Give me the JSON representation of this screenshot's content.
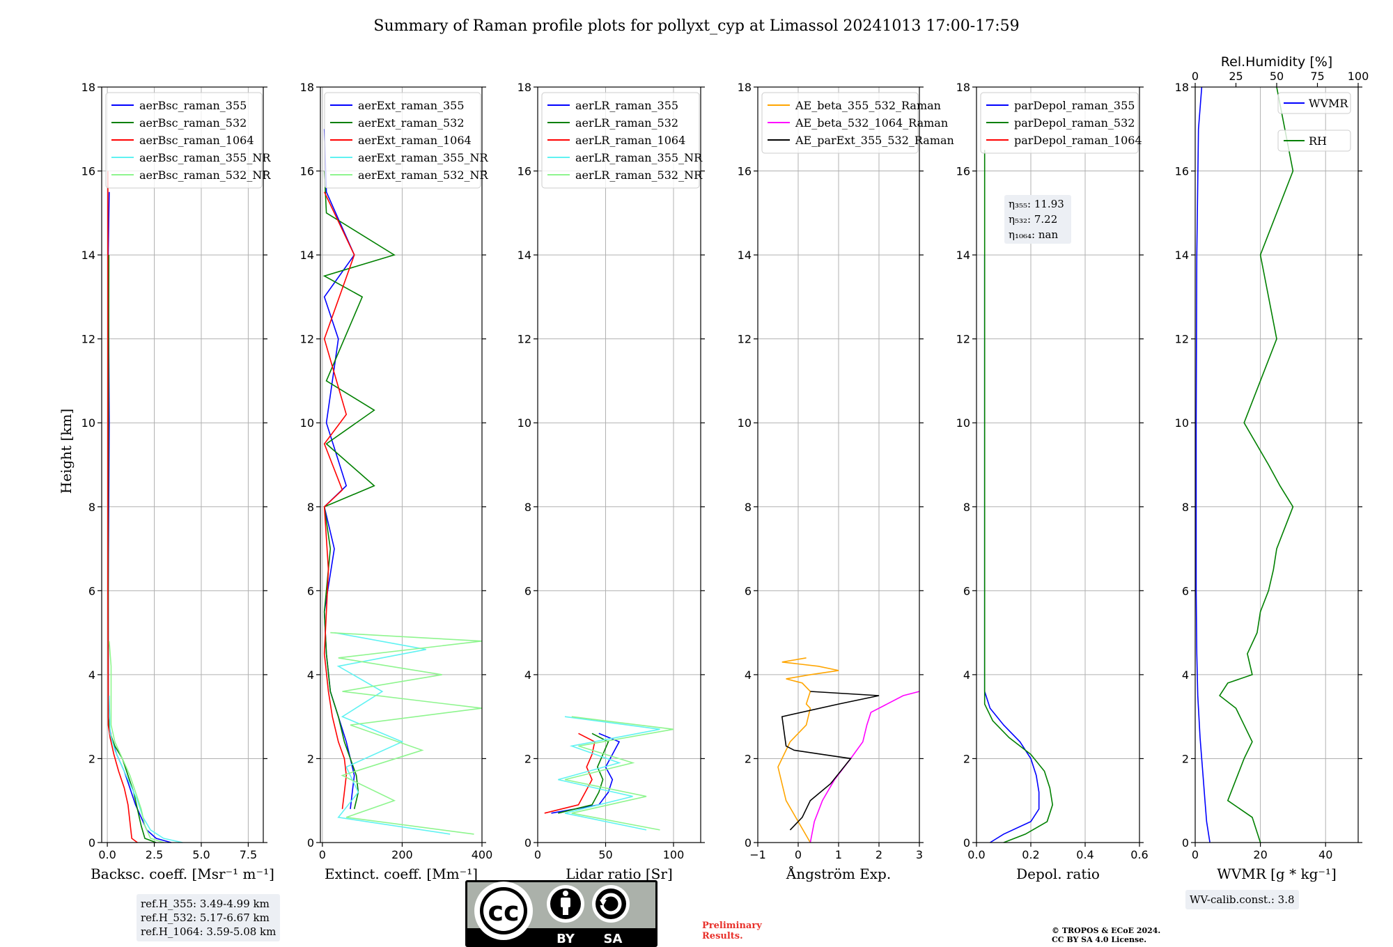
{
  "figure": {
    "title": "Summary of Raman profile plots for pollyxt_cyp at Limassol 20241013 17:00-17:59",
    "ylabel": "Height [km]"
  },
  "chart_data": [
    {
      "type": "line",
      "id": "bsc",
      "xlabel": "Backsc. coeff. [Msr⁻¹ m⁻¹]",
      "xlim": [
        -0.3,
        8.3
      ],
      "xticks": [
        0.0,
        2.5,
        5.0,
        7.5
      ],
      "xticklabels": [
        "0.0",
        "2.5",
        "5.0",
        "7.5"
      ],
      "ylim": [
        0,
        18
      ],
      "yticks": [
        0,
        2,
        4,
        6,
        8,
        10,
        12,
        14,
        16,
        18
      ],
      "legend": "top-left",
      "series": [
        {
          "name": "aerBsc_raman_355",
          "color": "#0000ff",
          "x": [
            3.4,
            2.6,
            2.1,
            1.8,
            1.5,
            1.2,
            0.9,
            0.5,
            0.2,
            0.05,
            0.05,
            0.1,
            0.05,
            0.1
          ],
          "y": [
            0,
            0.1,
            0.3,
            0.6,
            0.9,
            1.3,
            1.7,
            2.1,
            2.5,
            3.0,
            6.0,
            10.0,
            14.0,
            15.5
          ]
        },
        {
          "name": "aerBsc_raman_532",
          "color": "#008000",
          "x": [
            2.6,
            2.0,
            1.8,
            1.6,
            1.4,
            1.1,
            0.8,
            0.4,
            0.15,
            0.05,
            0.05,
            0.08
          ],
          "y": [
            0,
            0.1,
            0.4,
            0.8,
            1.2,
            1.6,
            2.0,
            2.3,
            2.6,
            3.0,
            8.0,
            14.0
          ]
        },
        {
          "name": "aerBsc_raman_1064",
          "color": "#ff0000",
          "x": [
            1.6,
            1.3,
            1.2,
            1.1,
            0.9,
            0.6,
            0.35,
            0.15,
            0.05,
            0.03,
            0.03
          ],
          "y": [
            0,
            0.1,
            0.5,
            0.9,
            1.3,
            1.7,
            2.1,
            2.5,
            2.8,
            6.0,
            16.0
          ]
        },
        {
          "name": "aerBsc_raman_355_NR",
          "color": "#5ff2f2",
          "x": [
            4.0,
            3.0,
            2.3,
            1.9,
            1.6,
            1.2,
            0.8,
            0.4,
            0.15,
            0.1
          ],
          "y": [
            0,
            0.1,
            0.3,
            0.6,
            1.0,
            1.4,
            1.8,
            2.2,
            2.6,
            3.5
          ]
        },
        {
          "name": "aerBsc_raman_532_NR",
          "color": "#8ef58e",
          "x": [
            3.0,
            2.3,
            2.0,
            1.8,
            1.5,
            1.2,
            0.8,
            0.4,
            0.2,
            0.2,
            0.1
          ],
          "y": [
            0,
            0.1,
            0.4,
            0.8,
            1.2,
            1.6,
            2.0,
            2.4,
            2.8,
            4.2,
            4.8
          ]
        }
      ]
    },
    {
      "type": "line",
      "id": "ext",
      "xlabel": "Extinct. coeff. [Mm⁻¹]",
      "xlim": [
        -5,
        400
      ],
      "xticks": [
        0,
        200,
        400
      ],
      "xticklabels": [
        "0",
        "200",
        "400"
      ],
      "ylim": [
        0,
        18
      ],
      "yticks": [
        0,
        2,
        4,
        6,
        8,
        10,
        12,
        14,
        16,
        18
      ],
      "legend": "top-left",
      "series": [
        {
          "name": "aerExt_raman_355",
          "color": "#0000ff",
          "x": [
            70,
            75,
            80,
            70,
            60,
            40,
            20,
            10,
            5,
            30,
            5,
            60,
            10,
            40,
            5,
            80,
            10,
            5
          ],
          "y": [
            0.8,
            1.2,
            1.6,
            2.0,
            2.4,
            3.0,
            3.6,
            4.5,
            5.5,
            7.0,
            8.0,
            8.5,
            10.0,
            12.0,
            13.0,
            14.0,
            15.5,
            17.0
          ]
        },
        {
          "name": "aerExt_raman_532",
          "color": "#008000",
          "x": [
            80,
            90,
            85,
            70,
            55,
            40,
            20,
            10,
            5,
            20,
            5,
            130,
            10,
            130,
            10,
            100,
            5,
            180,
            10,
            5
          ],
          "y": [
            0.8,
            1.2,
            1.6,
            2.0,
            2.4,
            3.0,
            3.6,
            4.5,
            5.5,
            7.0,
            8.0,
            8.5,
            9.5,
            10.3,
            11.0,
            13.0,
            13.5,
            14.0,
            15.0,
            16.0
          ]
        },
        {
          "name": "aerExt_raman_1064",
          "color": "#ff0000",
          "x": [
            50,
            55,
            60,
            55,
            40,
            25,
            15,
            5,
            15,
            5,
            50,
            5,
            60,
            5,
            80,
            5
          ],
          "y": [
            0.8,
            1.2,
            1.6,
            2.0,
            2.4,
            3.0,
            3.6,
            4.5,
            6.5,
            8.0,
            8.4,
            9.5,
            10.2,
            12.0,
            14.0,
            15.5
          ]
        },
        {
          "name": "aerExt_raman_355_NR",
          "color": "#5ff2f2",
          "x": [
            320,
            40,
            90,
            60,
            200,
            50,
            150,
            40,
            260,
            30
          ],
          "y": [
            0.2,
            0.6,
            1.2,
            1.8,
            2.4,
            3.0,
            3.6,
            4.2,
            4.6,
            5.0
          ]
        },
        {
          "name": "aerExt_raman_532_NR",
          "color": "#8ef58e",
          "x": [
            380,
            60,
            180,
            50,
            250,
            70,
            400,
            50,
            300,
            40,
            400,
            20
          ],
          "y": [
            0.2,
            0.6,
            1.0,
            1.6,
            2.2,
            2.8,
            3.2,
            3.6,
            4.0,
            4.4,
            4.8,
            5.0
          ]
        }
      ]
    },
    {
      "type": "line",
      "id": "lr",
      "xlabel": "Lidar ratio [Sr]",
      "xlim": [
        0,
        120
      ],
      "xticks": [
        0,
        50,
        100
      ],
      "xticklabels": [
        "0",
        "50",
        "100"
      ],
      "ylim": [
        0,
        18
      ],
      "yticks": [
        0,
        2,
        4,
        6,
        8,
        10,
        12,
        14,
        16,
        18
      ],
      "legend": "top-left",
      "series": [
        {
          "name": "aerLR_raman_355",
          "color": "#0000ff",
          "x": [
            10,
            45,
            52,
            55,
            50,
            55,
            60,
            45
          ],
          "y": [
            0.7,
            0.9,
            1.2,
            1.5,
            1.8,
            2.1,
            2.4,
            2.6
          ]
        },
        {
          "name": "aerLR_raman_532",
          "color": "#008000",
          "x": [
            15,
            40,
            45,
            48,
            44,
            48,
            52,
            40
          ],
          "y": [
            0.7,
            0.9,
            1.2,
            1.5,
            1.8,
            2.1,
            2.4,
            2.6
          ]
        },
        {
          "name": "aerLR_raman_1064",
          "color": "#ff0000",
          "x": [
            5,
            30,
            35,
            40,
            36,
            40,
            42,
            30
          ],
          "y": [
            0.7,
            0.9,
            1.2,
            1.5,
            1.8,
            2.1,
            2.4,
            2.6
          ]
        },
        {
          "name": "aerLR_raman_355_NR",
          "color": "#5ff2f2",
          "x": [
            80,
            20,
            70,
            15,
            60,
            25,
            90,
            20
          ],
          "y": [
            0.3,
            0.7,
            1.1,
            1.5,
            1.9,
            2.3,
            2.7,
            3.0
          ]
        },
        {
          "name": "aerLR_raman_532_NR",
          "color": "#8ef58e",
          "x": [
            90,
            25,
            80,
            20,
            70,
            30,
            100,
            25
          ],
          "y": [
            0.3,
            0.7,
            1.1,
            1.5,
            1.9,
            2.3,
            2.7,
            3.0
          ]
        }
      ]
    },
    {
      "type": "line",
      "id": "ae",
      "xlabel": "Ångström Exp.",
      "xlim": [
        -1,
        3
      ],
      "xticks": [
        -1,
        0,
        1,
        2,
        3
      ],
      "xticklabels": [
        "−1",
        "0",
        "1",
        "2",
        "3"
      ],
      "ylim": [
        0,
        18
      ],
      "yticks": [
        0,
        2,
        4,
        6,
        8,
        10,
        12,
        14,
        16,
        18
      ],
      "legend": "top-left",
      "series": [
        {
          "name": "AE_beta_355_532_Raman",
          "color": "#ffa500",
          "x": [
            0.3,
            0.0,
            -0.3,
            -0.5,
            -0.2,
            0.2,
            0.3,
            0.2,
            0.3,
            0.1,
            -0.3,
            0.3,
            1.0,
            0.5,
            -0.4,
            0.2
          ],
          "y": [
            0,
            0.5,
            1.0,
            1.8,
            2.4,
            2.8,
            3.2,
            3.3,
            3.6,
            3.8,
            3.9,
            4.0,
            4.1,
            4.2,
            4.3,
            4.4
          ]
        },
        {
          "name": "AE_beta_532_1064_Raman",
          "color": "#ff00ff",
          "x": [
            0.3,
            0.4,
            0.6,
            0.9,
            1.3,
            1.6,
            1.7,
            1.8,
            2.2,
            2.6,
            3.0
          ],
          "y": [
            0,
            0.5,
            1.0,
            1.5,
            2.0,
            2.4,
            2.8,
            3.1,
            3.3,
            3.5,
            3.6
          ]
        },
        {
          "name": "AE_parExt_355_532_Raman",
          "color": "#000000",
          "x": [
            -0.2,
            -0.1,
            0.1,
            0.3,
            0.8,
            1.3,
            0.6,
            -0.1,
            -0.3,
            -0.4,
            1.0,
            2.0,
            0.3
          ],
          "y": [
            0.3,
            0.4,
            0.6,
            1.0,
            1.4,
            2.0,
            2.1,
            2.2,
            2.3,
            3.0,
            3.3,
            3.5,
            3.6
          ]
        }
      ]
    },
    {
      "type": "line",
      "id": "depol",
      "xlabel": "Depol. ratio",
      "xlim": [
        0,
        0.6
      ],
      "xticks": [
        0.0,
        0.2,
        0.4,
        0.6
      ],
      "xticklabels": [
        "0.0",
        "0.2",
        "0.4",
        "0.6"
      ],
      "ylim": [
        0,
        18
      ],
      "yticks": [
        0,
        2,
        4,
        6,
        8,
        10,
        12,
        14,
        16,
        18
      ],
      "legend": "top-left",
      "series": [
        {
          "name": "parDepol_raman_355",
          "color": "#0000ff",
          "x": [
            0.05,
            0.1,
            0.2,
            0.23,
            0.23,
            0.22,
            0.2,
            0.16,
            0.1,
            0.05,
            0.03,
            0.03
          ],
          "y": [
            0,
            0.2,
            0.5,
            0.8,
            1.2,
            1.6,
            2.0,
            2.4,
            2.8,
            3.2,
            3.6,
            14.0
          ]
        },
        {
          "name": "parDepol_raman_532",
          "color": "#008000",
          "x": [
            0.1,
            0.18,
            0.26,
            0.28,
            0.27,
            0.25,
            0.2,
            0.12,
            0.06,
            0.03,
            0.03
          ],
          "y": [
            0,
            0.2,
            0.5,
            0.9,
            1.3,
            1.7,
            2.1,
            2.5,
            2.9,
            3.3,
            16.5
          ]
        },
        {
          "name": "parDepol_raman_1064",
          "color": "#ff0000",
          "x": [],
          "y": []
        }
      ],
      "annotations": [
        {
          "label": "η₃₅₅: 11.93"
        },
        {
          "label": "η₅₃₂: 7.22"
        },
        {
          "label": "η₁₀₆₄: nan"
        }
      ]
    },
    {
      "type": "line",
      "id": "wv",
      "xlabel": "WVMR [g * kg⁻¹]",
      "xlim": [
        0,
        50
      ],
      "xticks": [
        0,
        20,
        40
      ],
      "xticklabels": [
        "0",
        "20",
        "40"
      ],
      "x2label": "Rel.Humidity [%]",
      "x2lim": [
        0,
        100
      ],
      "x2ticks": [
        0,
        25,
        50,
        75,
        100
      ],
      "x2ticklabels": [
        "0",
        "25",
        "50",
        "75",
        "100"
      ],
      "ylim": [
        0,
        18
      ],
      "yticks": [
        0,
        2,
        4,
        6,
        8,
        10,
        12,
        14,
        16,
        18
      ],
      "legend": "top-right",
      "series": [
        {
          "name": "WVMR",
          "color": "#0000ff",
          "axis": "x",
          "x": [
            4.5,
            3.5,
            3.0,
            2.5,
            1.5,
            0.8,
            0.5,
            0.3,
            0.3,
            0.5,
            1.0,
            2.0
          ],
          "y": [
            0,
            0.5,
            1.0,
            1.5,
            2.5,
            3.5,
            4.5,
            6.0,
            10.0,
            14.0,
            17.0,
            18.0
          ]
        },
        {
          "name": "RH",
          "color": "#008000",
          "axis": "x2",
          "x": [
            40,
            35,
            20,
            25,
            30,
            35,
            30,
            25,
            15,
            20,
            35,
            32,
            38,
            40,
            45,
            48,
            50,
            55,
            60,
            52,
            45,
            30,
            40,
            50,
            40,
            60,
            50
          ],
          "y": [
            0,
            0.6,
            1.0,
            1.5,
            2.0,
            2.4,
            2.8,
            3.2,
            3.5,
            3.8,
            4.0,
            4.5,
            5.0,
            5.5,
            6.0,
            6.5,
            7.0,
            7.5,
            8.0,
            8.5,
            9.0,
            10.0,
            11.0,
            12.0,
            14.0,
            16.0,
            18.0
          ]
        }
      ]
    }
  ],
  "info": {
    "refH": [
      "ref.H_355: 3.49-4.99 km",
      "ref.H_532: 5.17-6.67 km",
      "ref.H_1064: 3.59-5.08 km"
    ],
    "wv_calib": "WV-calib.const.: 3.8",
    "preliminary": [
      "Preliminary",
      "Results."
    ],
    "copyright": [
      "© TROPOS & ECoE 2024.",
      "CC BY SA 4.0 License."
    ],
    "license_logo": {
      "by": "BY",
      "sa": "SA",
      "cc": "cc"
    }
  }
}
